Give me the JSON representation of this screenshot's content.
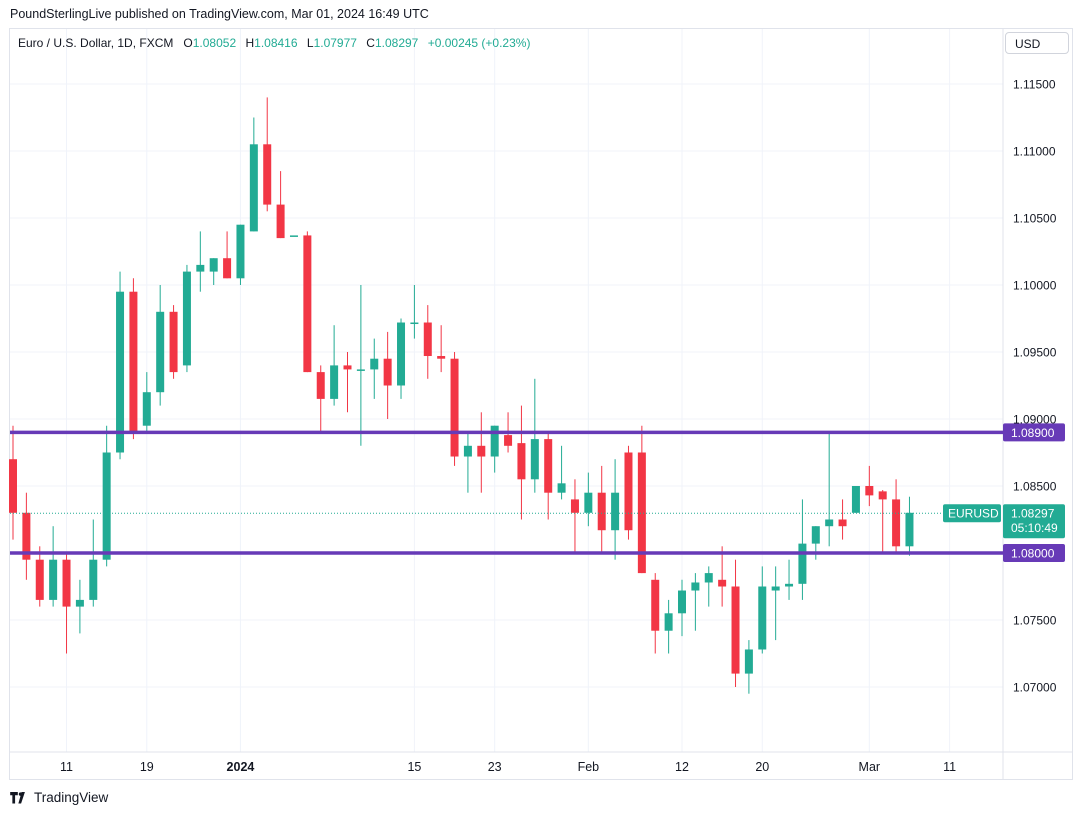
{
  "header": {
    "attribution": "PoundSterlingLive published on TradingView.com, Mar 01, 2024 16:49 UTC"
  },
  "legend": {
    "symbol": "Euro / U.S. Dollar, 1D, FXCM",
    "o_label": "O",
    "o_value": "1.08052",
    "h_label": "H",
    "h_value": "1.08416",
    "l_label": "L",
    "l_value": "1.07977",
    "c_label": "C",
    "c_value": "1.08297",
    "change": "+0.00245 (+0.23%)"
  },
  "currency_button": "USD",
  "footer": {
    "brand": "TradingView"
  },
  "colors": {
    "up": "#22ab94",
    "down": "#f23645",
    "level_line": "#673ab7"
  },
  "chart_data": {
    "type": "candlestick",
    "title": "Euro / U.S. Dollar, 1D, FXCM",
    "ylim": [
      1.0675,
      1.12
    ],
    "y_ticks": [
      "1.11500",
      "1.11000",
      "1.10500",
      "1.10000",
      "1.09500",
      "1.09000",
      "1.08500",
      "1.07500",
      "1.07000"
    ],
    "y_tick_values": [
      1.115,
      1.11,
      1.105,
      1.1,
      1.095,
      1.09,
      1.085,
      1.075,
      1.07
    ],
    "x_ticks": [
      {
        "label": "11",
        "bar": 4,
        "bold": false
      },
      {
        "label": "19",
        "bar": 10,
        "bold": false
      },
      {
        "label": "2024",
        "bar": 17,
        "bold": true
      },
      {
        "label": "15",
        "bar": 30,
        "bold": false
      },
      {
        "label": "23",
        "bar": 36,
        "bold": false
      },
      {
        "label": "Feb",
        "bar": 43,
        "bold": false
      },
      {
        "label": "12",
        "bar": 50,
        "bold": false
      },
      {
        "label": "20",
        "bar": 56,
        "bold": false
      },
      {
        "label": "Mar",
        "bar": 64,
        "bold": false
      },
      {
        "label": "11",
        "bar": 70,
        "bold": false
      }
    ],
    "horizontal_levels": [
      {
        "value": 1.089,
        "label": "1.08900"
      },
      {
        "value": 1.08,
        "label": "1.08000"
      }
    ],
    "last_price": {
      "value": 1.08297,
      "symbol": "EURUSD",
      "price": "1.08297",
      "countdown": "05:10:49"
    },
    "candles": [
      {
        "o": 1.087,
        "h": 1.0895,
        "l": 1.081,
        "c": 1.083
      },
      {
        "o": 1.083,
        "h": 1.0845,
        "l": 1.078,
        "c": 1.0795
      },
      {
        "o": 1.0795,
        "h": 1.0805,
        "l": 1.076,
        "c": 1.0765
      },
      {
        "o": 1.0765,
        "h": 1.082,
        "l": 1.076,
        "c": 1.0795
      },
      {
        "o": 1.0795,
        "h": 1.08,
        "l": 1.0725,
        "c": 1.076
      },
      {
        "o": 1.076,
        "h": 1.078,
        "l": 1.074,
        "c": 1.0765
      },
      {
        "o": 1.0765,
        "h": 1.0825,
        "l": 1.076,
        "c": 1.0795
      },
      {
        "o": 1.0795,
        "h": 1.0895,
        "l": 1.079,
        "c": 1.0875
      },
      {
        "o": 1.0875,
        "h": 1.101,
        "l": 1.087,
        "c": 1.0995
      },
      {
        "o": 1.0995,
        "h": 1.1005,
        "l": 1.0885,
        "c": 1.089
      },
      {
        "o": 1.0895,
        "h": 1.0935,
        "l": 1.089,
        "c": 1.092
      },
      {
        "o": 1.092,
        "h": 1.1,
        "l": 1.091,
        "c": 1.098
      },
      {
        "o": 1.098,
        "h": 1.0985,
        "l": 1.093,
        "c": 1.0935
      },
      {
        "o": 1.094,
        "h": 1.1015,
        "l": 1.0935,
        "c": 1.101
      },
      {
        "o": 1.101,
        "h": 1.104,
        "l": 1.0995,
        "c": 1.1015
      },
      {
        "o": 1.101,
        "h": 1.102,
        "l": 1.1,
        "c": 1.102
      },
      {
        "o": 1.102,
        "h": 1.104,
        "l": 1.1005,
        "c": 1.1005
      },
      {
        "o": 1.1005,
        "h": 1.1045,
        "l": 1.1,
        "c": 1.1045
      },
      {
        "o": 1.104,
        "h": 1.1125,
        "l": 1.104,
        "c": 1.1105
      },
      {
        "o": 1.1105,
        "h": 1.114,
        "l": 1.1055,
        "c": 1.106
      },
      {
        "o": 1.106,
        "h": 1.1085,
        "l": 1.1035,
        "c": 1.1035
      },
      {
        "o": 1.1037,
        "h": 1.1037,
        "l": 1.1037,
        "c": 1.1037
      },
      {
        "o": 1.1037,
        "h": 1.104,
        "l": 1.0935,
        "c": 1.0935
      },
      {
        "o": 1.0935,
        "h": 1.094,
        "l": 1.089,
        "c": 1.0915
      },
      {
        "o": 1.0915,
        "h": 1.097,
        "l": 1.091,
        "c": 1.094
      },
      {
        "o": 1.094,
        "h": 1.095,
        "l": 1.0905,
        "c": 1.0937
      },
      {
        "o": 1.0937,
        "h": 1.1,
        "l": 1.088,
        "c": 1.0937
      },
      {
        "o": 1.0937,
        "h": 1.096,
        "l": 1.0915,
        "c": 1.0945
      },
      {
        "o": 1.0945,
        "h": 1.0965,
        "l": 1.09,
        "c": 1.0925
      },
      {
        "o": 1.0925,
        "h": 1.0975,
        "l": 1.0915,
        "c": 1.0972
      },
      {
        "o": 1.0972,
        "h": 1.1,
        "l": 1.096,
        "c": 1.0972
      },
      {
        "o": 1.0972,
        "h": 1.0985,
        "l": 1.093,
        "c": 1.0947
      },
      {
        "o": 1.0947,
        "h": 1.097,
        "l": 1.0935,
        "c": 1.0945
      },
      {
        "o": 1.0945,
        "h": 1.095,
        "l": 1.0865,
        "c": 1.0872
      },
      {
        "o": 1.0872,
        "h": 1.089,
        "l": 1.0845,
        "c": 1.088
      },
      {
        "o": 1.088,
        "h": 1.0905,
        "l": 1.0845,
        "c": 1.0872
      },
      {
        "o": 1.0872,
        "h": 1.0895,
        "l": 1.086,
        "c": 1.0895
      },
      {
        "o": 1.0888,
        "h": 1.0905,
        "l": 1.0875,
        "c": 1.088
      },
      {
        "o": 1.0882,
        "h": 1.091,
        "l": 1.0825,
        "c": 1.0855
      },
      {
        "o": 1.0855,
        "h": 1.093,
        "l": 1.0845,
        "c": 1.0885
      },
      {
        "o": 1.0885,
        "h": 1.089,
        "l": 1.0825,
        "c": 1.0845
      },
      {
        "o": 1.0845,
        "h": 1.088,
        "l": 1.084,
        "c": 1.0852
      },
      {
        "o": 1.084,
        "h": 1.0855,
        "l": 1.08,
        "c": 1.083
      },
      {
        "o": 1.083,
        "h": 1.086,
        "l": 1.082,
        "c": 1.0845
      },
      {
        "o": 1.0845,
        "h": 1.0865,
        "l": 1.08,
        "c": 1.0817
      },
      {
        "o": 1.0817,
        "h": 1.087,
        "l": 1.0795,
        "c": 1.0845
      },
      {
        "o": 1.0875,
        "h": 1.088,
        "l": 1.081,
        "c": 1.0817
      },
      {
        "o": 1.0875,
        "h": 1.0895,
        "l": 1.0785,
        "c": 1.0785
      },
      {
        "o": 1.078,
        "h": 1.0785,
        "l": 1.0725,
        "c": 1.0742
      },
      {
        "o": 1.0742,
        "h": 1.0765,
        "l": 1.0725,
        "c": 1.0755
      },
      {
        "o": 1.0755,
        "h": 1.078,
        "l": 1.0738,
        "c": 1.0772
      },
      {
        "o": 1.0772,
        "h": 1.0785,
        "l": 1.0742,
        "c": 1.0778
      },
      {
        "o": 1.0778,
        "h": 1.079,
        "l": 1.076,
        "c": 1.0785
      },
      {
        "o": 1.078,
        "h": 1.0805,
        "l": 1.076,
        "c": 1.0775
      },
      {
        "o": 1.0775,
        "h": 1.0795,
        "l": 1.07,
        "c": 1.071
      },
      {
        "o": 1.071,
        "h": 1.0735,
        "l": 1.0695,
        "c": 1.0728
      },
      {
        "o": 1.0728,
        "h": 1.079,
        "l": 1.0725,
        "c": 1.0775
      },
      {
        "o": 1.0772,
        "h": 1.079,
        "l": 1.0735,
        "c": 1.0775
      },
      {
        "o": 1.0775,
        "h": 1.0795,
        "l": 1.0765,
        "c": 1.0777
      },
      {
        "o": 1.0777,
        "h": 1.084,
        "l": 1.0765,
        "c": 1.0807
      },
      {
        "o": 1.0807,
        "h": 1.082,
        "l": 1.0795,
        "c": 1.082
      },
      {
        "o": 1.082,
        "h": 1.089,
        "l": 1.0805,
        "c": 1.0825
      },
      {
        "o": 1.0825,
        "h": 1.084,
        "l": 1.081,
        "c": 1.082
      },
      {
        "o": 1.083,
        "h": 1.085,
        "l": 1.083,
        "c": 1.085
      },
      {
        "o": 1.085,
        "h": 1.0865,
        "l": 1.0835,
        "c": 1.0843
      },
      {
        "o": 1.0846,
        "h": 1.0847,
        "l": 1.08,
        "c": 1.084
      },
      {
        "o": 1.084,
        "h": 1.0855,
        "l": 1.08,
        "c": 1.0805
      },
      {
        "o": 1.0805,
        "h": 1.0842,
        "l": 1.0798,
        "c": 1.083
      }
    ]
  }
}
